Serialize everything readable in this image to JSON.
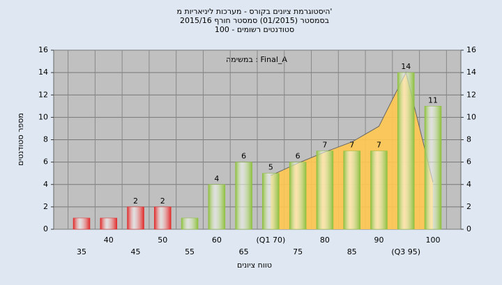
{
  "chart_data": {
    "type": "bar",
    "title": "היסטוגרמת ציונים בקורס - מערכות ליניאריות מ'",
    "subtitle": "בסמסטר  (01/2015)  סמסטר חורף 2015/16",
    "subtitle2": "סטודנטים רשומים - 100",
    "annotation": "במשימה : Final_A",
    "x_label": "טווח ציונים",
    "y_label": "מספר סטודנטים",
    "categories": [
      "35",
      "40",
      "45",
      "50",
      "55",
      "60",
      "65",
      "(Q1 70)",
      "75",
      "80",
      "85",
      "90",
      "(Q3 95)",
      "100"
    ],
    "series": [
      {
        "type": "area",
        "color": "#ffc850",
        "values": [
          null,
          null,
          null,
          null,
          null,
          null,
          null,
          4.8,
          5.9,
          6.9,
          7.8,
          9.2,
          14,
          4.2
        ]
      },
      {
        "type": "bar",
        "colors": [
          "#e02828",
          "#e02828",
          "#e02828",
          "#e02828",
          "#8cbf3c",
          "#8cbf3c",
          "#8cbf3c",
          "#8cbf3c",
          "#8cbf3c",
          "#8cbf3c",
          "#8cbf3c",
          "#8cbf3c",
          "#8cbf3c",
          "#8cbf3c"
        ],
        "values": [
          1,
          1,
          2,
          2,
          1,
          4,
          6,
          5,
          6,
          7,
          7,
          7,
          14,
          11
        ],
        "value_labels": [
          null,
          null,
          "2",
          "2",
          null,
          "4",
          "6",
          "5",
          "6",
          "7",
          "7",
          "7",
          "14",
          "11"
        ]
      }
    ],
    "ylim": [
      0,
      16
    ],
    "yticks": [
      0,
      2,
      4,
      6,
      8,
      10,
      12,
      14,
      16
    ],
    "y2lim": [
      0,
      16
    ],
    "y2ticks": [
      0,
      2,
      4,
      6,
      8,
      10,
      12,
      14,
      16
    ],
    "grid": true
  }
}
